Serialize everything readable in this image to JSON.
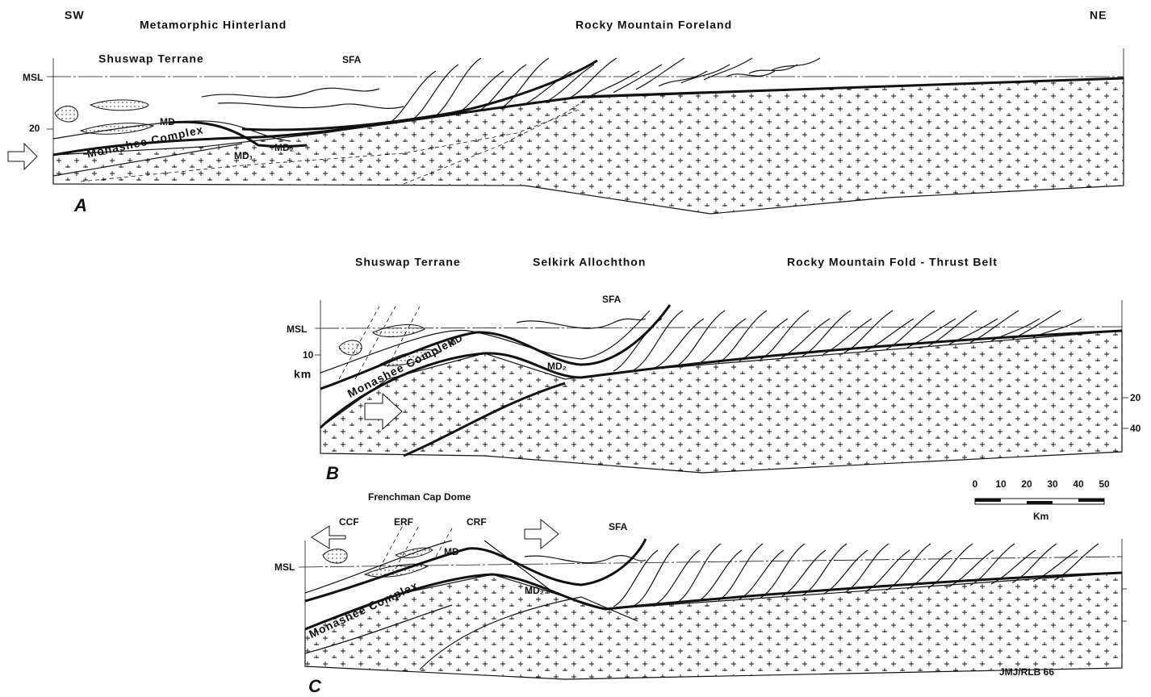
{
  "orientation": {
    "left": "SW",
    "right": "NE"
  },
  "panels": [
    {
      "label": "A",
      "headings": [
        "Metamorphic Hinterland",
        "Rocky Mountain Foreland"
      ],
      "labels": [
        "Shuswap Terrane",
        "SFA",
        "MSL",
        "20",
        "MD",
        "MD₂",
        "MD₁",
        "Monashee Complex"
      ]
    },
    {
      "label": "B",
      "headings": [
        "Shuswap Terrane",
        "Selkirk Allochthon",
        "Rocky Mountain Fold - Thrust Belt"
      ],
      "labels": [
        "SFA",
        "MSL",
        "10",
        "km",
        "MD",
        "MD₂",
        "Monashee Complex",
        "20",
        "40"
      ]
    },
    {
      "label": "C",
      "headings": [
        "Frenchman Cap Dome"
      ],
      "labels": [
        "CCF",
        "ERF",
        "CRF",
        "SFA",
        "MD",
        "MD₂",
        "MSL",
        "Monashee Complex"
      ]
    }
  ],
  "scale_bar": {
    "ticks": [
      0,
      10,
      20,
      30,
      40,
      50
    ],
    "unit": "Km"
  },
  "credit": "JMJ/RLB 66"
}
